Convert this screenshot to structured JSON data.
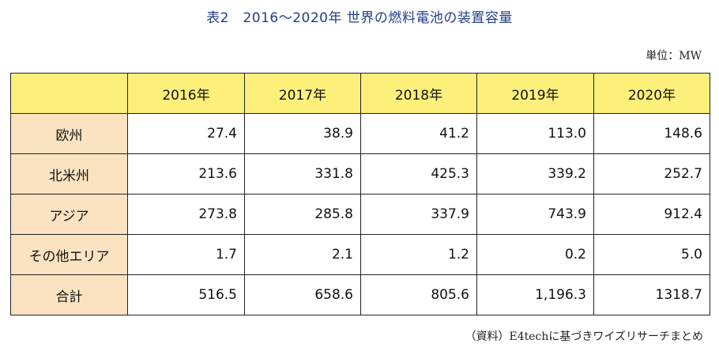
{
  "title": "表2　2016〜2020年 世界の燃料電池の装置容量",
  "unit": "単位：MW",
  "table": {
    "columns": [
      "2016年",
      "2017年",
      "2018年",
      "2019年",
      "2020年"
    ],
    "rows": [
      {
        "label": "欧州",
        "values": [
          "27.4",
          "38.9",
          "41.2",
          "113.0",
          "148.6"
        ]
      },
      {
        "label": "北米州",
        "values": [
          "213.6",
          "331.8",
          "425.3",
          "339.2",
          "252.7"
        ]
      },
      {
        "label": "アジア",
        "values": [
          "273.8",
          "285.8",
          "337.9",
          "743.9",
          "912.4"
        ]
      },
      {
        "label": "その他エリア",
        "values": [
          "1.7",
          "2.1",
          "1.2",
          "0.2",
          "5.0"
        ]
      },
      {
        "label": "合計",
        "values": [
          "516.5",
          "658.6",
          "805.6",
          "1,196.3",
          "1318.7"
        ]
      }
    ]
  },
  "source": "（資料）E4techに基づきワイズリサーチまとめ",
  "colors": {
    "title": "#1f3f8a",
    "header_fill": "#fdf07a",
    "row_header_fill": "#fbe3c2",
    "border": "#222222"
  }
}
